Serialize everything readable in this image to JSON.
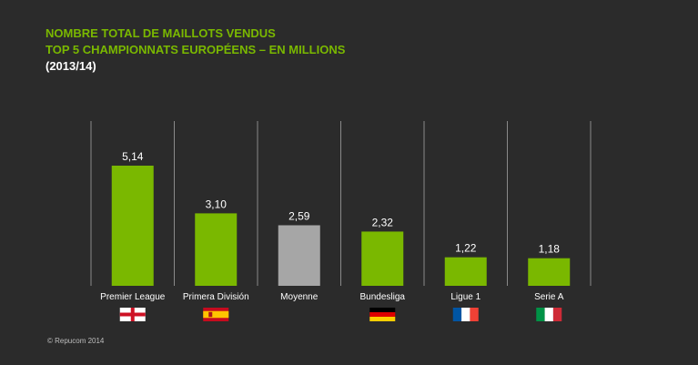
{
  "title": {
    "line1": "NOMBRE TOTAL DE MAILLOTS VENDUS",
    "line2": "TOP 5 CHAMPIONNATS EUROPÉENS – EN MILLIONS",
    "subtitle": "(2013/14)"
  },
  "colors": {
    "accent": "#7ab800",
    "bar_green": "#7ab800",
    "bar_gray": "#a6a6a6",
    "background": "#2b2b2b",
    "text": "#ffffff",
    "divider": "#8a8a8a"
  },
  "chart_data": {
    "type": "bar",
    "title": "NOMBRE TOTAL DE MAILLOTS VENDUS",
    "xlabel": "",
    "ylabel": "",
    "ylim": [
      0,
      5.14
    ],
    "grid": false,
    "categories": [
      "Premier League",
      "Primera División",
      "Moyenne",
      "Bundesliga",
      "Ligue 1",
      "Serie A"
    ],
    "values": [
      5.14,
      3.1,
      2.59,
      2.32,
      1.22,
      1.18
    ],
    "value_labels": [
      "5,14",
      "3,10",
      "2,59",
      "2,32",
      "1,22",
      "1,18"
    ],
    "bar_colors": [
      "green",
      "green",
      "gray",
      "green",
      "green",
      "green"
    ],
    "flags": [
      "england-flag-icon",
      "spain-flag-icon",
      "",
      "germany-flag-icon",
      "france-flag-icon",
      "italy-flag-icon"
    ]
  },
  "footer": {
    "copyright": "© Repucom  2014"
  }
}
